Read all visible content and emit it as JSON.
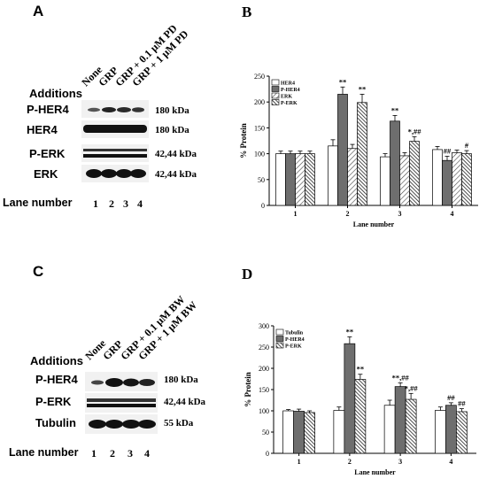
{
  "panelA": {
    "letter": "A",
    "lane_headers": [
      "None",
      "GRP",
      "GRP + 0.1 μM PD",
      "GRP + 1 μM PD"
    ],
    "additions_label": "Additions",
    "rows": [
      {
        "label": "P-HER4",
        "kda": "180 kDa"
      },
      {
        "label": "HER4",
        "kda": "180 kDa"
      },
      {
        "label": "P-ERK",
        "kda": "42,44 kDa"
      },
      {
        "label": "ERK",
        "kda": "42,44 kDa"
      }
    ],
    "lane_number_label": "Lane number",
    "lane_numbers": [
      "1",
      "2",
      "3",
      "4"
    ]
  },
  "panelC": {
    "letter": "C",
    "lane_headers": [
      "None",
      "GRP",
      "GRP + 0.1 μM BW",
      "GRP + 1 μM BW"
    ],
    "additions_label": "Additions",
    "rows": [
      {
        "label": "P-HER4",
        "kda": "180 kDa"
      },
      {
        "label": "P-ERK",
        "kda": "42,44 kDa"
      },
      {
        "label": "Tubulin",
        "kda": "55 kDa"
      }
    ],
    "lane_number_label": "Lane number",
    "lane_numbers": [
      "1",
      "2",
      "3",
      "4"
    ]
  },
  "chart_data": [
    {
      "panel": "B",
      "type": "bar",
      "ylabel": "% Protein",
      "xlabel": "Lane number",
      "ylim": [
        0,
        250
      ],
      "yticks": [
        0,
        50,
        100,
        150,
        200,
        250
      ],
      "categories": [
        "1",
        "2",
        "3",
        "4"
      ],
      "legend_position": "top-left",
      "series": [
        {
          "name": "HER4",
          "fill": "white",
          "values": [
            100,
            115,
            94,
            108
          ],
          "errors": [
            5,
            12,
            6,
            6
          ]
        },
        {
          "name": "P-HER4",
          "fill": "#6e6e6e",
          "values": [
            100,
            215,
            163,
            87
          ],
          "errors": [
            5,
            14,
            11,
            8
          ]
        },
        {
          "name": "ERK",
          "fill": "hatch-light",
          "values": [
            100,
            110,
            96,
            102
          ],
          "errors": [
            5,
            8,
            6,
            5
          ]
        },
        {
          "name": "P-ERK",
          "fill": "hatch-dense",
          "values": [
            100,
            199,
            124,
            100
          ],
          "errors": [
            5,
            16,
            9,
            6
          ]
        }
      ],
      "annotations": [
        {
          "category": "2",
          "series": "P-HER4",
          "text": "**"
        },
        {
          "category": "2",
          "series": "P-ERK",
          "text": "**"
        },
        {
          "category": "3",
          "series": "P-HER4",
          "text": "**"
        },
        {
          "category": "3",
          "series": "P-ERK",
          "text": "*,##"
        },
        {
          "category": "4",
          "series": "P-HER4",
          "text": "##"
        },
        {
          "category": "4",
          "series": "P-ERK",
          "text": "#"
        }
      ]
    },
    {
      "panel": "D",
      "type": "bar",
      "ylabel": "% Protein",
      "xlabel": "Lane number",
      "ylim": [
        0,
        300
      ],
      "yticks": [
        0,
        50,
        100,
        150,
        200,
        250,
        300
      ],
      "categories": [
        "1",
        "2",
        "3",
        "4"
      ],
      "legend_position": "top-left",
      "series": [
        {
          "name": "Tubulin",
          "fill": "white",
          "values": [
            100,
            101,
            113,
            101
          ],
          "errors": [
            3,
            8,
            12,
            8
          ]
        },
        {
          "name": "P-HER4",
          "fill": "#6e6e6e",
          "values": [
            99,
            258,
            157,
            113
          ],
          "errors": [
            5,
            16,
            9,
            6
          ]
        },
        {
          "name": "P-ERK",
          "fill": "hatch-dense",
          "values": [
            96,
            174,
            127,
            98
          ],
          "errors": [
            4,
            12,
            14,
            7
          ]
        }
      ],
      "annotations": [
        {
          "category": "2",
          "series": "P-HER4",
          "text": "**"
        },
        {
          "category": "2",
          "series": "P-ERK",
          "text": "**"
        },
        {
          "category": "3",
          "series": "P-HER4",
          "text": "**,##"
        },
        {
          "category": "3",
          "series": "P-ERK",
          "text": "*,##"
        },
        {
          "category": "4",
          "series": "P-HER4",
          "text": "##"
        },
        {
          "category": "4",
          "series": "P-ERK",
          "text": "##"
        }
      ]
    }
  ]
}
